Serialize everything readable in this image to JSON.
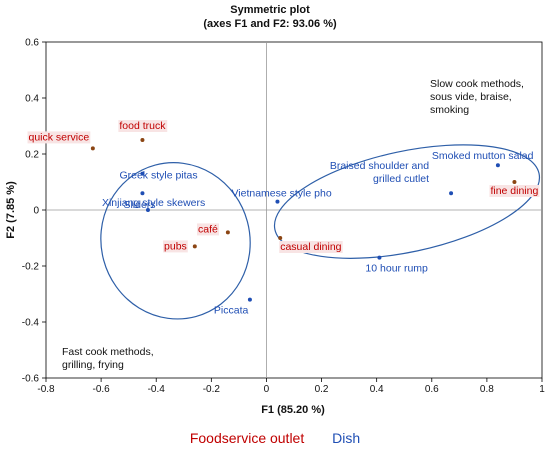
{
  "chart_data": {
    "type": "scatter",
    "title": "Symmetric plot",
    "subtitle": "(axes F1 and F2: 93.06 %)",
    "xlabel": "F1 (85.20 %)",
    "ylabel": "F2 (7.85 %)",
    "xlim": [
      -0.8,
      1.0
    ],
    "ylim": [
      -0.6,
      0.6
    ],
    "xticks": [
      "-0.8",
      "-0.6",
      "-0.4",
      "-0.2",
      "0",
      "0.2",
      "0.4",
      "0.6",
      "0.8",
      "1"
    ],
    "yticks": [
      "-0.6",
      "-0.4",
      "-0.2",
      "0",
      "0.2",
      "0.4",
      "0.6"
    ],
    "grid": false,
    "colors": {
      "outlet": "#c00000",
      "dish": "#1f4eb4",
      "ellipse": "#2e5fa8",
      "point_outlet": "#8b4513"
    },
    "series": [
      {
        "name": "Foodservice outlet",
        "points": [
          {
            "label": "quick service",
            "x": -0.63,
            "y": 0.22
          },
          {
            "label": "food truck",
            "x": -0.45,
            "y": 0.25
          },
          {
            "label": "café",
            "x": -0.14,
            "y": -0.08
          },
          {
            "label": "pubs",
            "x": -0.26,
            "y": -0.13
          },
          {
            "label": "casual dining",
            "x": 0.05,
            "y": -0.1
          },
          {
            "label": "fine dining",
            "x": 0.9,
            "y": 0.1
          }
        ]
      },
      {
        "name": "Dish",
        "points": [
          {
            "label": "Greek style pitas",
            "x": -0.45,
            "y": 0.13
          },
          {
            "label": "Sliders",
            "x": -0.45,
            "y": 0.06
          },
          {
            "label": "Xinjiang style skewers",
            "x": -0.43,
            "y": 0.0
          },
          {
            "label": "Piccata",
            "x": -0.06,
            "y": -0.32
          },
          {
            "label": "Vietnamese style pho",
            "x": 0.04,
            "y": 0.03
          },
          {
            "label": "Braised shoulder and",
            "label2": "grilled cutlet",
            "x": 0.67,
            "y": 0.06
          },
          {
            "label": "Smoked mutton salad",
            "x": 0.84,
            "y": 0.16
          },
          {
            "label": "10 hour rump",
            "x": 0.41,
            "y": -0.17
          }
        ]
      }
    ],
    "annotations": [
      {
        "lines": [
          "Slow cook methods,",
          "sous vide, braise,",
          "smoking"
        ]
      },
      {
        "lines": [
          "Fast cook methods,",
          "grilling, frying"
        ]
      }
    ],
    "legend": [
      "Foodservice outlet",
      "Dish"
    ]
  }
}
